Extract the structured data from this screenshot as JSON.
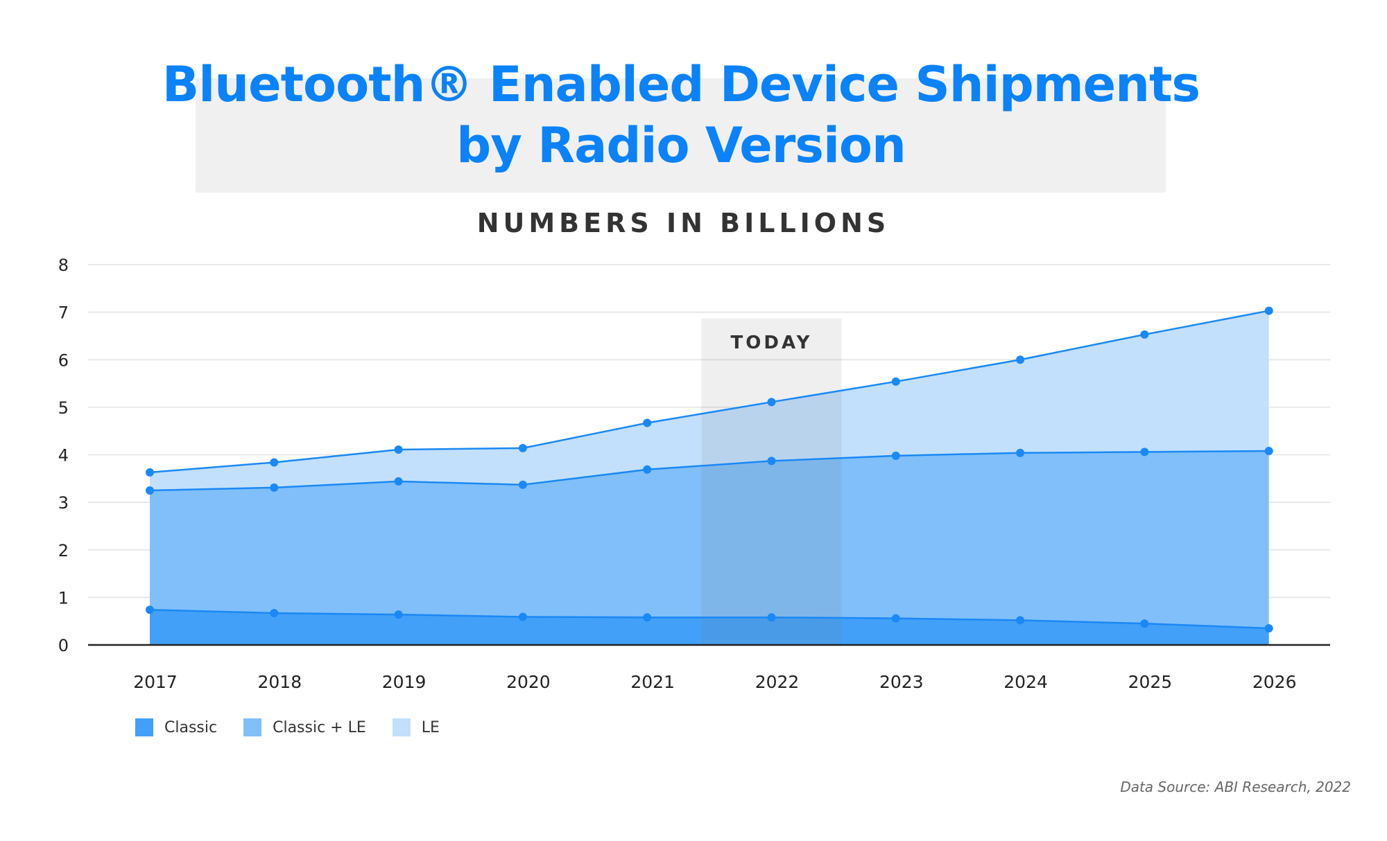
{
  "title": {
    "line1": "Bluetooth® Enabled Device Shipments",
    "line2": "by Radio Version"
  },
  "subtitle": "NUMBERS IN BILLIONS",
  "source": "Data Source: ABI Research, 2022",
  "colors": {
    "title": "#0a82fa",
    "classic": "#42a0f8",
    "classic_le": "#80bffa",
    "le": "#c2e0fc",
    "line": "#1a88f5",
    "today_band": "#e6e6e6",
    "grid": "#e8e8e8",
    "axis": "#222222"
  },
  "chart_data": {
    "type": "area",
    "stacked": true,
    "title": "Bluetooth® Enabled Device Shipments by Radio Version",
    "subtitle": "NUMBERS IN BILLIONS",
    "xlabel": "",
    "ylabel": "",
    "ylim": [
      0,
      8
    ],
    "yticks": [
      0,
      1,
      2,
      3,
      4,
      5,
      6,
      7,
      8
    ],
    "grid": true,
    "categories": [
      "2017",
      "2018",
      "2019",
      "2020",
      "2021",
      "2022",
      "2023",
      "2024",
      "2025",
      "2026"
    ],
    "series": [
      {
        "name": "Classic",
        "values": [
          0.74,
          0.67,
          0.64,
          0.59,
          0.58,
          0.58,
          0.56,
          0.52,
          0.45,
          0.35
        ]
      },
      {
        "name": "Classic + LE",
        "values": [
          2.51,
          2.64,
          2.8,
          2.78,
          3.11,
          3.29,
          3.42,
          3.52,
          3.61,
          3.73
        ]
      },
      {
        "name": "LE",
        "values": [
          0.38,
          0.53,
          0.67,
          0.77,
          0.98,
          1.24,
          1.56,
          1.96,
          2.47,
          2.95
        ]
      }
    ],
    "totals": {
      "classic_plus_le_top": [
        3.25,
        3.31,
        3.44,
        3.37,
        3.69,
        3.87,
        3.98,
        4.04,
        4.06,
        4.08
      ],
      "total": [
        3.63,
        3.84,
        4.11,
        4.14,
        4.67,
        5.11,
        5.54,
        6.0,
        6.53,
        7.03
      ]
    },
    "annotations": [
      {
        "text": "TODAY",
        "category": "2022"
      }
    ],
    "legend": [
      "Classic",
      "Classic + LE",
      "LE"
    ],
    "legend_position": "bottom-left"
  }
}
